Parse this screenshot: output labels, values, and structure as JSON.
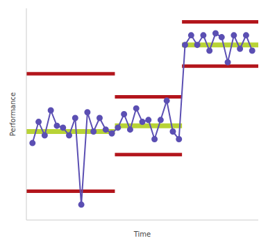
{
  "chart_data": {
    "type": "line",
    "x_label": "Time",
    "y_label": "Performance",
    "x": [
      1,
      2,
      3,
      4,
      5,
      6,
      7,
      8,
      9,
      10,
      11,
      12,
      13,
      14,
      15,
      16,
      17,
      18,
      19,
      20,
      21,
      22,
      23,
      24,
      25,
      26,
      27,
      28,
      29,
      30,
      31,
      32,
      33,
      34,
      35,
      36,
      37
    ],
    "values": [
      40,
      51,
      44,
      57,
      49,
      48,
      44,
      53,
      8,
      56,
      46,
      53,
      47,
      45,
      48,
      55,
      47,
      58,
      51,
      52,
      42,
      52,
      62,
      46,
      42,
      91,
      96,
      91,
      96,
      88,
      97,
      95,
      82,
      96,
      89,
      96,
      88
    ],
    "color": "#5b4fb3",
    "marker": "o",
    "xlim": [
      0,
      38
    ],
    "ylim": [
      0,
      110
    ],
    "tick_labels": false,
    "grid": false,
    "phases": [
      {
        "x_range": [
          0,
          14.5
        ],
        "mean": 46,
        "upper_limit": 76,
        "lower_limit": 15
      },
      {
        "x_range": [
          14.5,
          25.5
        ],
        "mean": 49,
        "upper_limit": 64,
        "lower_limit": 34
      },
      {
        "x_range": [
          25.5,
          38
        ],
        "mean": 91,
        "upper_limit": 103,
        "lower_limit": 80
      }
    ]
  }
}
